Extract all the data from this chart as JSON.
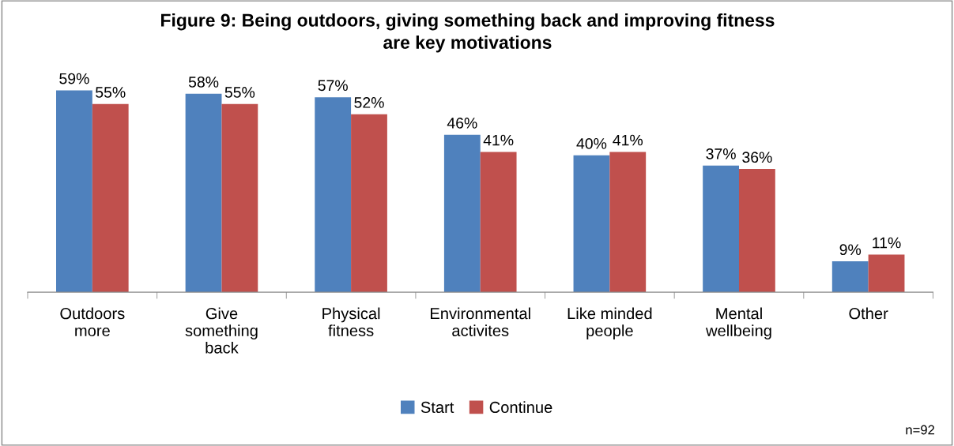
{
  "chart_data": {
    "type": "bar",
    "title": "Figure 9: Being outdoors, giving something back and improving fitness\nare key motivations",
    "categories": [
      "Outdoors\nmore",
      "Give\nsomething\nback",
      "Physical\nfitness",
      "Environmental\nactivites",
      "Like minded\npeople",
      "Mental\nwellbeing",
      "Other"
    ],
    "series": [
      {
        "name": "Start",
        "color": "#4f81bd",
        "values": [
          59,
          58,
          57,
          46,
          40,
          37,
          9
        ],
        "value_labels": [
          "59%",
          "58%",
          "57%",
          "46%",
          "40%",
          "37%",
          "9%"
        ]
      },
      {
        "name": "Continue",
        "color": "#c0504d",
        "values": [
          55,
          55,
          52,
          41,
          41,
          36,
          11
        ],
        "value_labels": [
          "55%",
          "55%",
          "52%",
          "41%",
          "41%",
          "36%",
          "11%"
        ]
      }
    ],
    "legend": "bottom",
    "grid": false,
    "annotations": [
      "n=92"
    ]
  }
}
